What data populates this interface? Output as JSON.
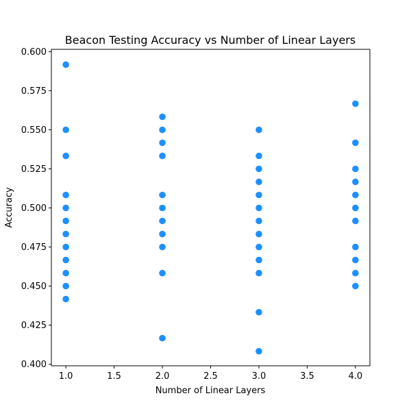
{
  "chart_data": {
    "type": "scatter",
    "title": "Beacon Testing Accuracy vs Number of Linear Layers",
    "xlabel": "Number of Linear Layers",
    "ylabel": "Accuracy",
    "xlim": [
      0.85,
      4.15
    ],
    "ylim": [
      0.399,
      0.6015
    ],
    "xticks": [
      1.0,
      1.5,
      2.0,
      2.5,
      3.0,
      3.5,
      4.0
    ],
    "xtick_labels": [
      "1.0",
      "1.5",
      "2.0",
      "2.5",
      "3.0",
      "3.5",
      "4.0"
    ],
    "yticks": [
      0.4,
      0.425,
      0.45,
      0.475,
      0.5,
      0.525,
      0.55,
      0.575,
      0.6
    ],
    "ytick_labels": [
      "0.400",
      "0.425",
      "0.450",
      "0.475",
      "0.500",
      "0.525",
      "0.550",
      "0.575",
      "0.600"
    ],
    "grid": false,
    "marker_color": "#1e90ff",
    "points": [
      {
        "x": 1,
        "y": 0.5917
      },
      {
        "x": 1,
        "y": 0.55
      },
      {
        "x": 1,
        "y": 0.5333
      },
      {
        "x": 1,
        "y": 0.5083
      },
      {
        "x": 1,
        "y": 0.5
      },
      {
        "x": 1,
        "y": 0.4917
      },
      {
        "x": 1,
        "y": 0.4833
      },
      {
        "x": 1,
        "y": 0.475
      },
      {
        "x": 1,
        "y": 0.4667
      },
      {
        "x": 1,
        "y": 0.4583
      },
      {
        "x": 1,
        "y": 0.45
      },
      {
        "x": 1,
        "y": 0.4417
      },
      {
        "x": 2,
        "y": 0.5583
      },
      {
        "x": 2,
        "y": 0.55
      },
      {
        "x": 2,
        "y": 0.5417
      },
      {
        "x": 2,
        "y": 0.5333
      },
      {
        "x": 2,
        "y": 0.5083
      },
      {
        "x": 2,
        "y": 0.5
      },
      {
        "x": 2,
        "y": 0.4917
      },
      {
        "x": 2,
        "y": 0.4833
      },
      {
        "x": 2,
        "y": 0.475
      },
      {
        "x": 2,
        "y": 0.4583
      },
      {
        "x": 2,
        "y": 0.4167
      },
      {
        "x": 3,
        "y": 0.55
      },
      {
        "x": 3,
        "y": 0.5333
      },
      {
        "x": 3,
        "y": 0.525
      },
      {
        "x": 3,
        "y": 0.5167
      },
      {
        "x": 3,
        "y": 0.5083
      },
      {
        "x": 3,
        "y": 0.5
      },
      {
        "x": 3,
        "y": 0.4917
      },
      {
        "x": 3,
        "y": 0.4833
      },
      {
        "x": 3,
        "y": 0.475
      },
      {
        "x": 3,
        "y": 0.4667
      },
      {
        "x": 3,
        "y": 0.4583
      },
      {
        "x": 3,
        "y": 0.4333
      },
      {
        "x": 3,
        "y": 0.4083
      },
      {
        "x": 4,
        "y": 0.5667
      },
      {
        "x": 4,
        "y": 0.5417
      },
      {
        "x": 4,
        "y": 0.525
      },
      {
        "x": 4,
        "y": 0.5167
      },
      {
        "x": 4,
        "y": 0.5083
      },
      {
        "x": 4,
        "y": 0.5
      },
      {
        "x": 4,
        "y": 0.4917
      },
      {
        "x": 4,
        "y": 0.475
      },
      {
        "x": 4,
        "y": 0.4667
      },
      {
        "x": 4,
        "y": 0.4583
      },
      {
        "x": 4,
        "y": 0.45
      }
    ]
  }
}
